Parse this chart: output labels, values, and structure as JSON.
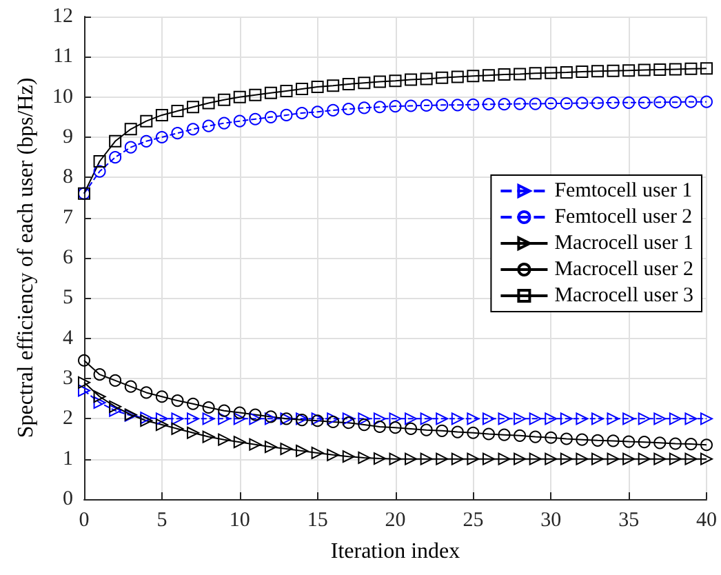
{
  "chart_data": {
    "type": "line",
    "xlabel": "Iteration index",
    "ylabel": "Spectral efficiency of each user (bps/Hz)",
    "x": [
      0,
      1,
      2,
      3,
      4,
      5,
      6,
      7,
      8,
      9,
      10,
      11,
      12,
      13,
      14,
      15,
      16,
      17,
      18,
      19,
      20,
      21,
      22,
      23,
      24,
      25,
      26,
      27,
      28,
      29,
      30,
      31,
      32,
      33,
      34,
      35,
      36,
      37,
      38,
      39,
      40
    ],
    "series": [
      {
        "name": "Femtocell user 1",
        "color": "#0000ff",
        "marker": "triangle",
        "line_style": "dashed",
        "values": [
          2.7,
          2.4,
          2.2,
          2.08,
          2.02,
          2,
          2,
          2,
          2,
          2,
          2,
          2,
          2,
          2,
          2,
          2,
          2,
          2,
          2,
          2,
          2,
          2,
          2,
          2,
          2,
          2,
          2,
          2,
          2,
          2,
          2,
          2,
          2,
          2,
          2,
          2,
          2,
          2,
          2,
          2,
          2
        ]
      },
      {
        "name": "Femtocell user 2",
        "color": "#0000ff",
        "marker": "circle",
        "line_style": "dashed",
        "values": [
          7.6,
          8.15,
          8.5,
          8.75,
          8.9,
          9,
          9.1,
          9.2,
          9.28,
          9.35,
          9.4,
          9.45,
          9.5,
          9.55,
          9.6,
          9.63,
          9.67,
          9.7,
          9.73,
          9.75,
          9.77,
          9.78,
          9.79,
          9.8,
          9.8,
          9.81,
          9.82,
          9.82,
          9.83,
          9.83,
          9.84,
          9.84,
          9.85,
          9.85,
          9.86,
          9.86,
          9.86,
          9.87,
          9.87,
          9.88,
          9.88
        ]
      },
      {
        "name": "Macrocell user 1",
        "color": "#000000",
        "marker": "triangle",
        "line_style": "solid",
        "values": [
          2.9,
          2.55,
          2.3,
          2.1,
          1.95,
          1.85,
          1.75,
          1.65,
          1.55,
          1.48,
          1.42,
          1.36,
          1.3,
          1.25,
          1.2,
          1.15,
          1.1,
          1.06,
          1.03,
          1.01,
          1,
          1,
          1,
          1,
          1,
          1,
          1,
          1,
          1,
          1,
          1,
          1,
          1,
          1,
          1,
          1,
          1,
          1,
          1,
          1,
          1
        ]
      },
      {
        "name": "Macrocell user 2",
        "color": "#000000",
        "marker": "circle",
        "line_style": "solid",
        "values": [
          3.45,
          3.1,
          2.95,
          2.8,
          2.65,
          2.55,
          2.45,
          2.37,
          2.28,
          2.2,
          2.15,
          2.1,
          2.05,
          2,
          1.97,
          1.95,
          1.92,
          1.9,
          1.85,
          1.8,
          1.78,
          1.75,
          1.72,
          1.7,
          1.67,
          1.65,
          1.62,
          1.6,
          1.58,
          1.55,
          1.53,
          1.5,
          1.48,
          1.46,
          1.45,
          1.43,
          1.42,
          1.4,
          1.38,
          1.37,
          1.35
        ]
      },
      {
        "name": "Macrocell user 3",
        "color": "#000000",
        "marker": "square",
        "line_style": "solid",
        "values": [
          7.6,
          8.4,
          8.9,
          9.2,
          9.4,
          9.55,
          9.65,
          9.75,
          9.85,
          9.93,
          10,
          10.05,
          10.1,
          10.15,
          10.2,
          10.25,
          10.28,
          10.32,
          10.35,
          10.38,
          10.4,
          10.43,
          10.45,
          10.48,
          10.5,
          10.52,
          10.54,
          10.56,
          10.57,
          10.59,
          10.6,
          10.61,
          10.63,
          10.64,
          10.65,
          10.66,
          10.67,
          10.68,
          10.69,
          10.7,
          10.71
        ]
      }
    ],
    "xlim": [
      0,
      40
    ],
    "xticks": [
      0,
      5,
      10,
      15,
      20,
      25,
      30,
      35,
      40
    ],
    "ylim": [
      0,
      12
    ],
    "yticks": [
      0,
      1,
      2,
      3,
      4,
      5,
      6,
      7,
      8,
      9,
      10,
      11,
      12
    ],
    "grid": true,
    "legend": "right"
  }
}
